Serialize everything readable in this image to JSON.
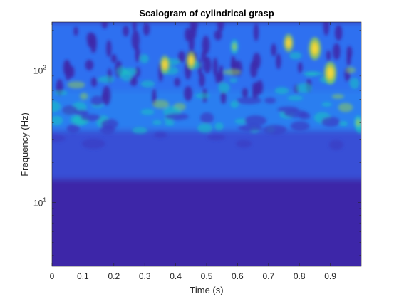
{
  "chart_data": {
    "type": "heatmap",
    "title": "Scalogram of cylindrical grasp",
    "xlabel": "Time (s)",
    "ylabel": "Frequency (Hz)",
    "xlim": [
      0,
      1
    ],
    "ylim_hz": [
      3.3,
      230
    ],
    "y_scale": "log",
    "colormap": "parula",
    "grid": false,
    "legend": "none",
    "x_ticks": [
      {
        "value": 0,
        "label": "0"
      },
      {
        "value": 0.1,
        "label": "0.1"
      },
      {
        "value": 0.2,
        "label": "0.2"
      },
      {
        "value": 0.3,
        "label": "0.3"
      },
      {
        "value": 0.4,
        "label": "0.4"
      },
      {
        "value": 0.5,
        "label": "0.5"
      },
      {
        "value": 0.6,
        "label": "0.6"
      },
      {
        "value": 0.7,
        "label": "0.7"
      },
      {
        "value": 0.8,
        "label": "0.8"
      },
      {
        "value": 0.9,
        "label": "0.9"
      }
    ],
    "y_ticks": [
      {
        "value": 10,
        "base": "10",
        "exp": "1"
      },
      {
        "value": 100,
        "base": "10",
        "exp": "2"
      }
    ],
    "energy_bands_hz": [
      {
        "from": 3.3,
        "to": 15,
        "level": "low"
      },
      {
        "from": 15,
        "to": 35,
        "level": "low-medium"
      },
      {
        "from": 35,
        "to": 70,
        "level": "medium"
      },
      {
        "from": 70,
        "to": 230,
        "level": "medium-high"
      }
    ],
    "hotspots": [
      {
        "time": 0.365,
        "freq_hz": 110,
        "level": "high"
      },
      {
        "time": 0.45,
        "freq_hz": 118,
        "level": "high"
      },
      {
        "time": 0.765,
        "freq_hz": 160,
        "level": "high"
      },
      {
        "time": 0.85,
        "freq_hz": 145,
        "level": "peak"
      },
      {
        "time": 0.9,
        "freq_hz": 95,
        "level": "peak"
      },
      {
        "time": 0.59,
        "freq_hz": 150,
        "level": "medium"
      },
      {
        "time": 0.99,
        "freq_hz": 40,
        "level": "medium"
      }
    ],
    "colors": {
      "dark": "#3e26a8",
      "blue": "#2e87f7",
      "cyan": "#17c7c0",
      "green": "#8dcb58",
      "yellow": "#f5d83a",
      "background": "#ffffff",
      "axis": "#262626"
    }
  }
}
